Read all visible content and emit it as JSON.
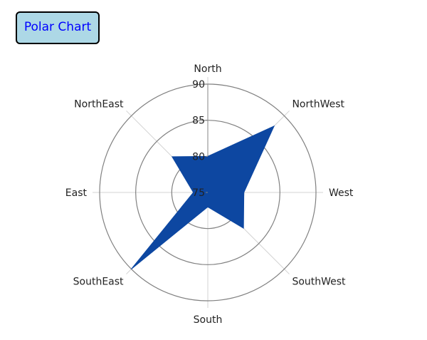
{
  "header": {
    "button_label": "Polar Chart"
  },
  "chart_data": {
    "type": "radar",
    "categories": [
      "North",
      "NorthWest",
      "West",
      "SouthWest",
      "South",
      "SouthEast",
      "East",
      "NorthEast"
    ],
    "angles_deg": [
      0,
      45,
      90,
      135,
      180,
      225,
      270,
      315
    ],
    "series": [
      {
        "values": [
          80,
          88,
          80,
          82,
          77,
          90,
          77,
          82
        ],
        "color": "#0d47a1"
      }
    ],
    "rlim": [
      75,
      90
    ],
    "r_ticks": [
      75,
      80,
      85,
      90
    ],
    "grid": true,
    "gridline_color": "#808080",
    "spoke_color": "#d3d3d3"
  }
}
